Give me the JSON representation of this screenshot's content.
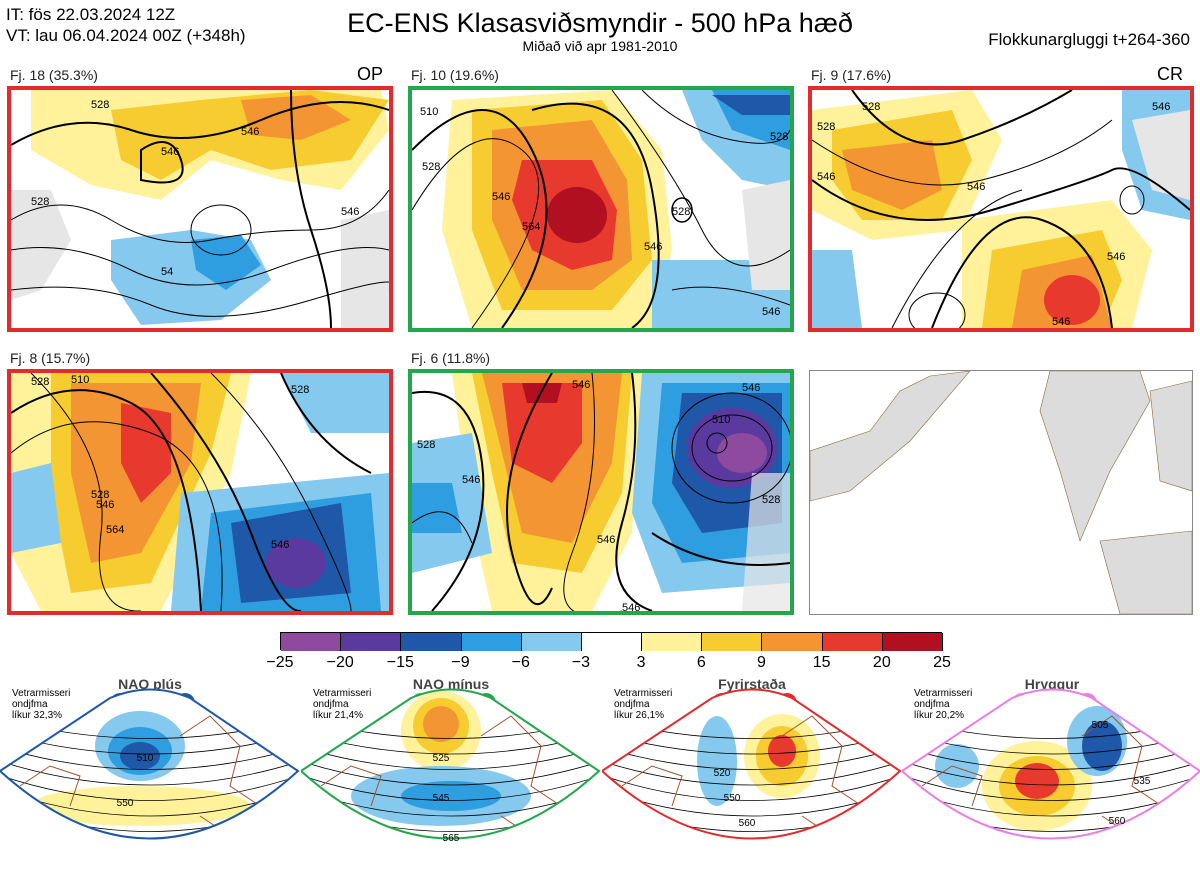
{
  "header": {
    "line1": "IT: fös 22.03.2024 12Z",
    "line2": "VT: lau 06.04.2024 00Z  (+348h)",
    "title": "EC-ENS Klasasviðsmyndir - 500 hPa hæð",
    "subtitle": "Miðað við apr 1981-2010",
    "window": "Flokkunargluggi t+264-360"
  },
  "panels": [
    {
      "label": "Fj. 18 (35.3%)",
      "tag": "OP",
      "border": "#e32b2b",
      "contours": [
        "528",
        "546",
        "528",
        "546",
        "546",
        "54"
      ]
    },
    {
      "label": "Fj. 10 (19.6%)",
      "tag": "",
      "border": "#22a84a",
      "contours": [
        "510",
        "528",
        "546",
        "564",
        "546",
        "528",
        "546",
        "528"
      ]
    },
    {
      "label": "Fj. 9 (17.6%)",
      "tag": "CR",
      "border": "#e32b2b",
      "contours": [
        "528",
        "528",
        "546",
        "546",
        "546",
        "546",
        "546"
      ]
    },
    {
      "label": "Fj. 8 (15.7%)",
      "tag": "",
      "border": "#e32b2b",
      "contours": [
        "528",
        "510",
        "528",
        "546",
        "564",
        "546",
        "528"
      ]
    },
    {
      "label": "Fj. 6 (11.8%)",
      "tag": "",
      "border": "#22a84a",
      "contours": [
        "546",
        "528",
        "546",
        "510",
        "528",
        "546",
        "546",
        "546"
      ]
    }
  ],
  "colorbar": {
    "ticks": [
      "−25",
      "−20",
      "−15",
      "−9",
      "−6",
      "−3",
      "3",
      "6",
      "9",
      "15",
      "20",
      "25"
    ],
    "colors": [
      "#8e4a9e",
      "#5b3aa0",
      "#1f58a8",
      "#2f9ee0",
      "#86c9ef",
      "#ffffff",
      "#fff29a",
      "#f7cc30",
      "#f39533",
      "#e8392e",
      "#b01020"
    ]
  },
  "regimes": [
    {
      "name": "NAO plús",
      "note1": "Vetrarmisseri",
      "note2": "ondjfma",
      "note3": "líkur 32,3%",
      "color": "#1f58a8",
      "labels": [
        "510",
        "550"
      ]
    },
    {
      "name": "NAO mínus",
      "note1": "Vetrarmisseri",
      "note2": "ondjfma",
      "note3": "líkur 21,4%",
      "color": "#22a84a",
      "labels": [
        "525",
        "545",
        "565"
      ]
    },
    {
      "name": "Fyrirstaða",
      "note1": "Vetrarmisseri",
      "note2": "ondjfma",
      "note3": "líkur 26,1%",
      "color": "#e32b2b",
      "labels": [
        "520",
        "550",
        "560"
      ]
    },
    {
      "name": "Hryggur",
      "note1": "Vetrarmisseri",
      "note2": "ondjfma",
      "note3": "líkur 20,2%",
      "color": "#e87fe8",
      "labels": [
        "505",
        "535",
        "560"
      ]
    }
  ]
}
